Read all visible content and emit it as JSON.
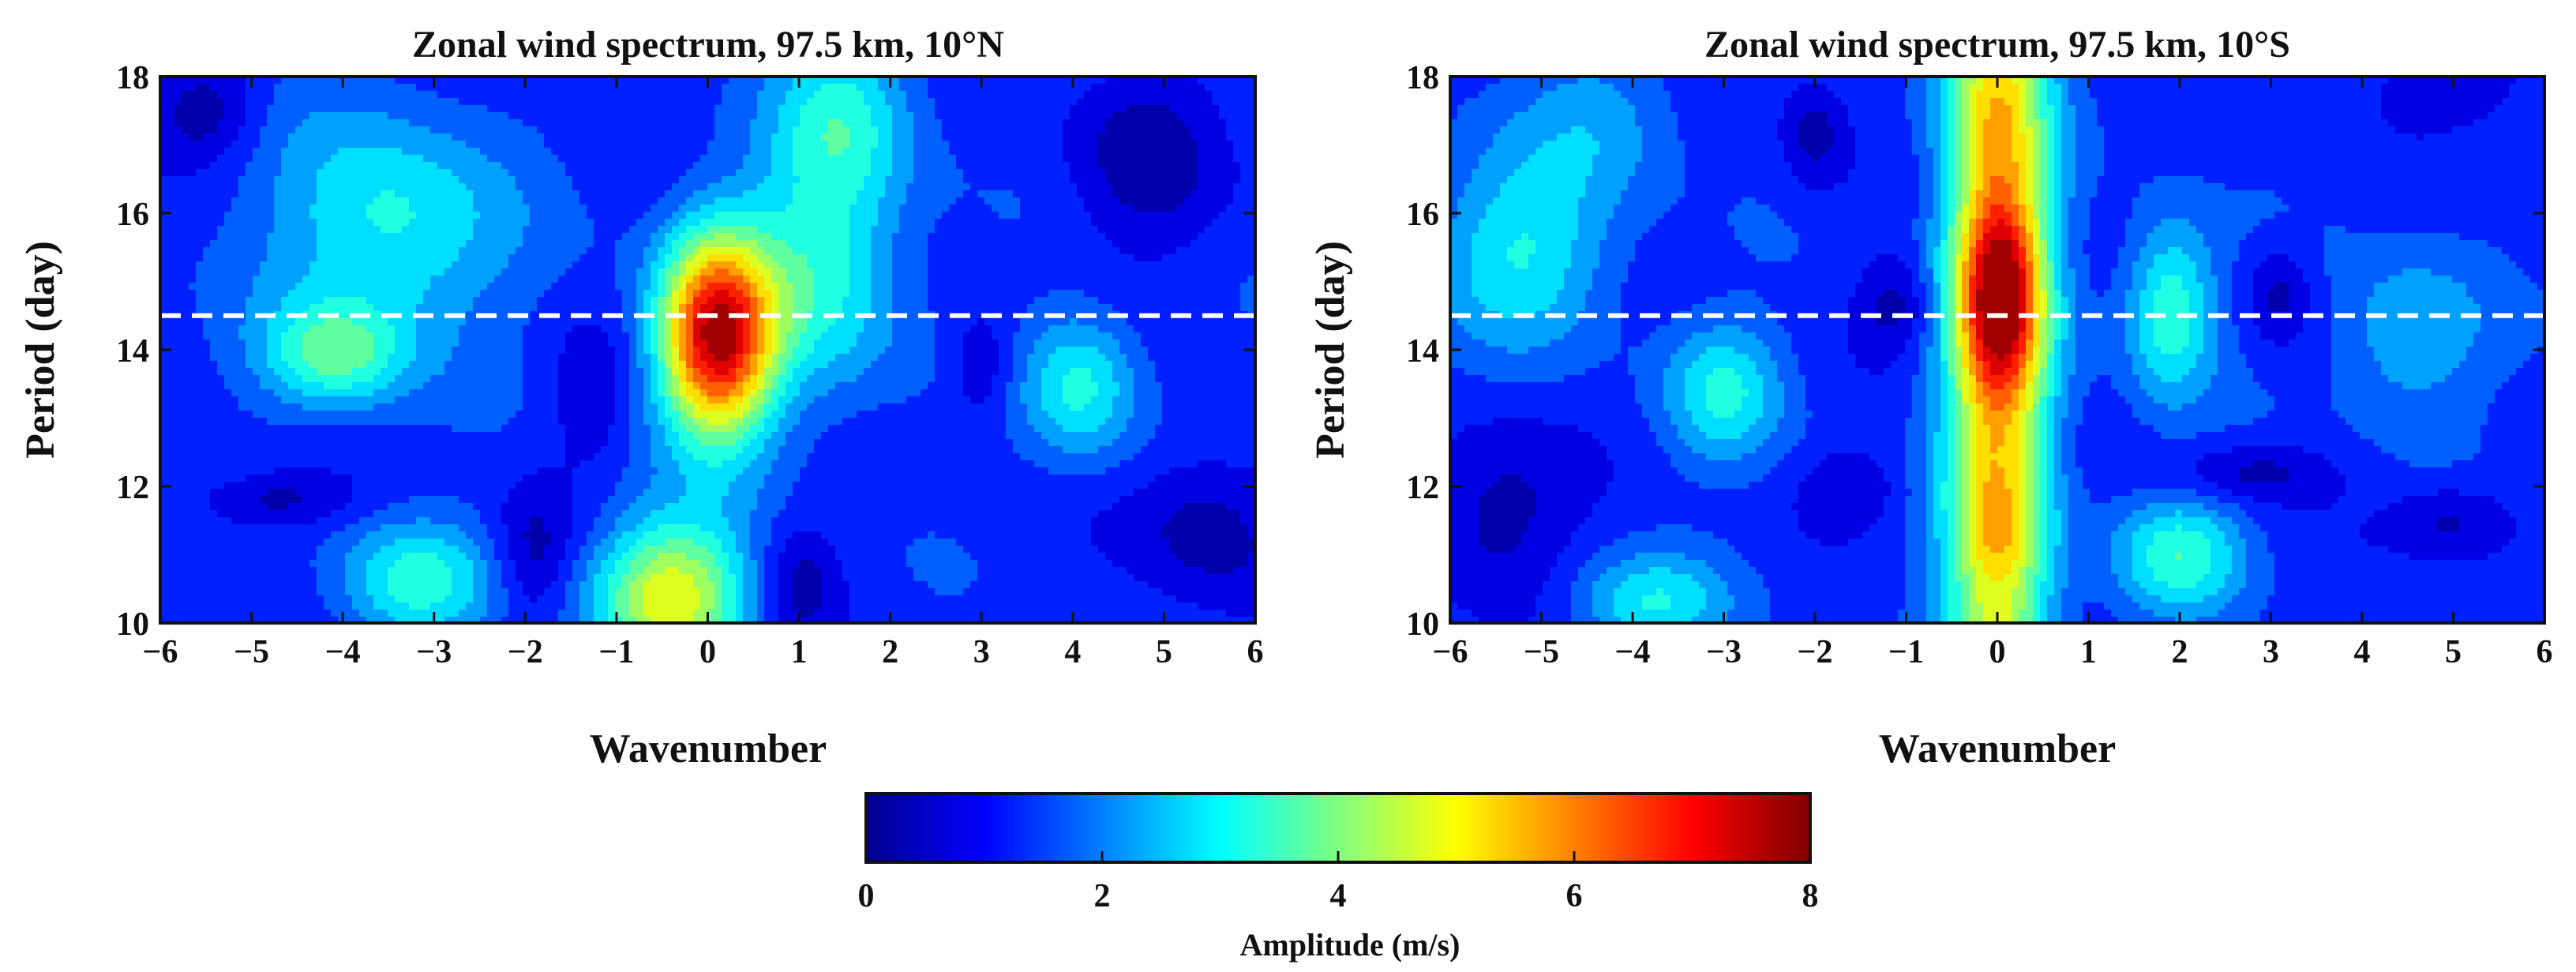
{
  "figure": {
    "panels": [
      {
        "id": "north",
        "title": "Zonal wind spectrum, 97.5 km, 10°N",
        "xlabel": "Wavenumber",
        "ylabel": "Period (day)"
      },
      {
        "id": "south",
        "title": "Zonal wind spectrum, 97.5 km, 10°S",
        "xlabel": "Wavenumber",
        "ylabel": "Period (day)"
      }
    ],
    "colorbar": {
      "label": "Amplitude (m/s)",
      "ticks": [
        "0",
        "2",
        "4",
        "6",
        "8"
      ]
    }
  },
  "chart_data": [
    {
      "type": "heatmap",
      "title": "Zonal wind spectrum, 97.5 km, 10°N",
      "xlabel": "Wavenumber",
      "ylabel": "Period (day)",
      "xlim": [
        -6,
        6
      ],
      "ylim": [
        10,
        18
      ],
      "xticks": [
        -6,
        -5,
        -4,
        -3,
        -2,
        -1,
        0,
        1,
        2,
        3,
        4,
        5,
        6
      ],
      "xtick_labels": [
        "−6",
        "−5",
        "−4",
        "−3",
        "−2",
        "−1",
        "0",
        "1",
        "2",
        "3",
        "4",
        "5",
        "6"
      ],
      "yticks": [
        10,
        12,
        14,
        16,
        18
      ],
      "ytick_labels": [
        "10",
        "12",
        "14",
        "16",
        "18"
      ],
      "reference_line": {
        "period": 14.5,
        "style": "dashed",
        "color": "#ffffff"
      },
      "base_amplitude": 1.3,
      "features": [
        {
          "wavenumber": 0.1,
          "period": 14.2,
          "amplitude": 6.4,
          "sx": 0.45,
          "sy": 1.05
        },
        {
          "wavenumber": 1.3,
          "period": 15.2,
          "amplitude": 1.9,
          "sx": 0.6,
          "sy": 1.3
        },
        {
          "wavenumber": 1.5,
          "period": 17.5,
          "amplitude": 1.6,
          "sx": 0.55,
          "sy": 0.9
        },
        {
          "wavenumber": -0.4,
          "period": 10.4,
          "amplitude": 3.6,
          "sx": 0.6,
          "sy": 0.8
        },
        {
          "wavenumber": -3.5,
          "period": 15.8,
          "amplitude": 1.9,
          "sx": 0.9,
          "sy": 1.2
        },
        {
          "wavenumber": -4.1,
          "period": 13.9,
          "amplitude": 2.2,
          "sx": 0.55,
          "sy": 0.55
        },
        {
          "wavenumber": -3.2,
          "period": 10.6,
          "amplitude": 1.9,
          "sx": 0.6,
          "sy": 0.6
        },
        {
          "wavenumber": 4.1,
          "period": 13.5,
          "amplitude": 1.9,
          "sx": 0.45,
          "sy": 0.75
        },
        {
          "wavenumber": -5.5,
          "period": 17.5,
          "amplitude": -1.1,
          "sx": 0.4,
          "sy": 0.5
        },
        {
          "wavenumber": -4.8,
          "period": 11.8,
          "amplitude": -1.0,
          "sx": 0.6,
          "sy": 0.3
        },
        {
          "wavenumber": -1.9,
          "period": 11.0,
          "amplitude": -1.0,
          "sx": 0.3,
          "sy": 0.7
        },
        {
          "wavenumber": 1.0,
          "period": 10.6,
          "amplitude": -1.0,
          "sx": 0.3,
          "sy": 0.6
        },
        {
          "wavenumber": 3.0,
          "period": 13.7,
          "amplitude": -0.9,
          "sx": 0.25,
          "sy": 0.6
        },
        {
          "wavenumber": 4.8,
          "period": 16.8,
          "amplitude": -1.0,
          "sx": 0.6,
          "sy": 1.0
        },
        {
          "wavenumber": 5.5,
          "period": 11.4,
          "amplitude": -1.1,
          "sx": 0.6,
          "sy": 0.8
        },
        {
          "wavenumber": -1.3,
          "period": 13.3,
          "amplitude": -0.7,
          "sx": 0.3,
          "sy": 0.7
        }
      ]
    },
    {
      "type": "heatmap",
      "title": "Zonal wind spectrum, 97.5 km, 10°S",
      "xlabel": "Wavenumber",
      "ylabel": "Period (day)",
      "xlim": [
        -6,
        6
      ],
      "ylim": [
        10,
        18
      ],
      "xticks": [
        -6,
        -5,
        -4,
        -3,
        -2,
        -1,
        0,
        1,
        2,
        3,
        4,
        5,
        6
      ],
      "xtick_labels": [
        "−6",
        "−5",
        "−4",
        "−3",
        "−2",
        "−1",
        "0",
        "1",
        "2",
        "3",
        "4",
        "5",
        "6"
      ],
      "yticks": [
        10,
        12,
        14,
        16,
        18
      ],
      "ytick_labels": [
        "10",
        "12",
        "14",
        "16",
        "18"
      ],
      "reference_line": {
        "period": 14.5,
        "style": "dashed",
        "color": "#ffffff"
      },
      "base_amplitude": 1.3,
      "features": [
        {
          "wavenumber": 0.0,
          "period": 14.0,
          "amplitude": 3.9,
          "sx": 0.42,
          "sy": 9.0
        },
        {
          "wavenumber": 0.05,
          "period": 14.8,
          "amplitude": 3.4,
          "sx": 0.32,
          "sy": 1.0
        },
        {
          "wavenumber": 0.05,
          "period": 11.4,
          "amplitude": 0.7,
          "sx": 0.3,
          "sy": 0.5
        },
        {
          "wavenumber": 0.0,
          "period": 17.5,
          "amplitude": 0.5,
          "sx": 0.35,
          "sy": 0.7
        },
        {
          "wavenumber": -5.2,
          "period": 15.5,
          "amplitude": 1.7,
          "sx": 0.7,
          "sy": 1.0
        },
        {
          "wavenumber": -3.0,
          "period": 13.4,
          "amplitude": 1.7,
          "sx": 0.45,
          "sy": 0.7
        },
        {
          "wavenumber": 1.9,
          "period": 14.6,
          "amplitude": 2.2,
          "sx": 0.35,
          "sy": 0.9
        },
        {
          "wavenumber": 2.0,
          "period": 11.0,
          "amplitude": 2.0,
          "sx": 0.5,
          "sy": 0.6
        },
        {
          "wavenumber": -3.8,
          "period": 10.3,
          "amplitude": 1.6,
          "sx": 0.6,
          "sy": 0.5
        },
        {
          "wavenumber": 4.5,
          "period": 14.2,
          "amplitude": 1.2,
          "sx": 0.6,
          "sy": 0.9
        },
        {
          "wavenumber": -4.3,
          "period": 17.4,
          "amplitude": 0.9,
          "sx": 0.6,
          "sy": 0.8
        },
        {
          "wavenumber": -1.1,
          "period": 14.7,
          "amplitude": -1.0,
          "sx": 0.3,
          "sy": 0.5
        },
        {
          "wavenumber": -2.0,
          "period": 17.2,
          "amplitude": -1.0,
          "sx": 0.25,
          "sy": 0.6
        },
        {
          "wavenumber": 3.1,
          "period": 14.8,
          "amplitude": -1.0,
          "sx": 0.25,
          "sy": 0.5
        },
        {
          "wavenumber": -5.5,
          "period": 11.6,
          "amplitude": -1.1,
          "sx": 0.6,
          "sy": 0.9
        },
        {
          "wavenumber": 2.8,
          "period": 12.2,
          "amplitude": -1.0,
          "sx": 0.6,
          "sy": 0.3
        },
        {
          "wavenumber": 5.0,
          "period": 11.5,
          "amplitude": -1.0,
          "sx": 0.5,
          "sy": 0.4
        },
        {
          "wavenumber": 5.0,
          "period": 17.8,
          "amplitude": -0.8,
          "sx": 0.6,
          "sy": 0.4
        },
        {
          "wavenumber": -1.6,
          "period": 12.0,
          "amplitude": -0.7,
          "sx": 0.4,
          "sy": 0.4
        }
      ]
    }
  ],
  "colorbar_data": {
    "range": [
      0,
      8
    ],
    "levels": 16,
    "colors": [
      "#00008f",
      "#0000ff",
      "#0080ff",
      "#00ffff",
      "#80ff80",
      "#ffff00",
      "#ff8000",
      "#ff0000",
      "#800000"
    ]
  }
}
